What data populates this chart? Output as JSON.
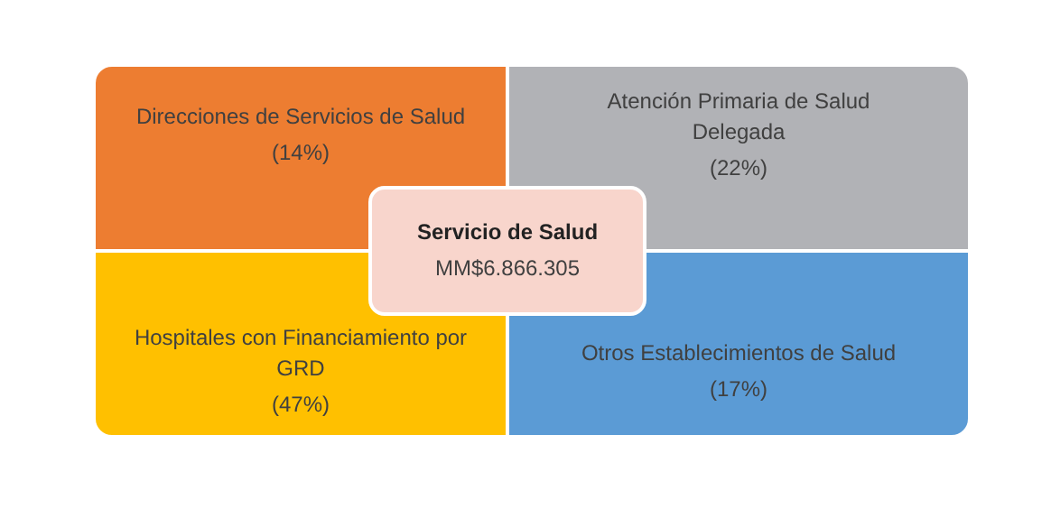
{
  "chart_data": {
    "type": "other",
    "title": "Servicio de Salud",
    "subtitle": "MM$6.866.305",
    "categories": [
      "Direcciones de Servicios de Salud",
      "Atención Primaria de Salud Delegada",
      "Hospitales con Financiamiento por GRD",
      "Otros Establecimientos de Salud"
    ],
    "values": [
      14,
      22,
      47,
      17
    ],
    "value_labels": [
      "(14%)",
      "(22%)",
      "(47%)",
      "(17%)"
    ],
    "colors": [
      "#ed7d31",
      "#b1b2b6",
      "#ffc000",
      "#5b9bd5"
    ]
  }
}
